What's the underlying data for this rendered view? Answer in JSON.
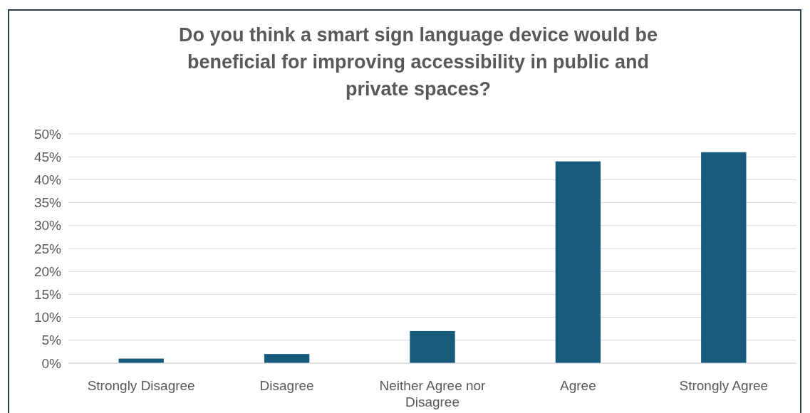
{
  "chart_data": {
    "type": "bar",
    "title": "Do you think a smart sign language device would be beneficial for improving accessibility in public and private spaces?",
    "categories": [
      "Strongly Disagree",
      "Disagree",
      "Neither Agree nor Disagree",
      "Agree",
      "Strongly Agree"
    ],
    "values": [
      1,
      2,
      7,
      44,
      46
    ],
    "color": "#175b7c",
    "ylim": [
      0,
      50
    ],
    "yticks": [
      {
        "value": 0,
        "label": "0%"
      },
      {
        "value": 5,
        "label": "5%"
      },
      {
        "value": 10,
        "label": "10%"
      },
      {
        "value": 15,
        "label": "15%"
      },
      {
        "value": 20,
        "label": "20%"
      },
      {
        "value": 25,
        "label": "25%"
      },
      {
        "value": 30,
        "label": "30%"
      },
      {
        "value": 35,
        "label": "35%"
      },
      {
        "value": 40,
        "label": "40%"
      },
      {
        "value": 45,
        "label": "45%"
      },
      {
        "value": 50,
        "label": "50%"
      }
    ],
    "grid": "y"
  }
}
